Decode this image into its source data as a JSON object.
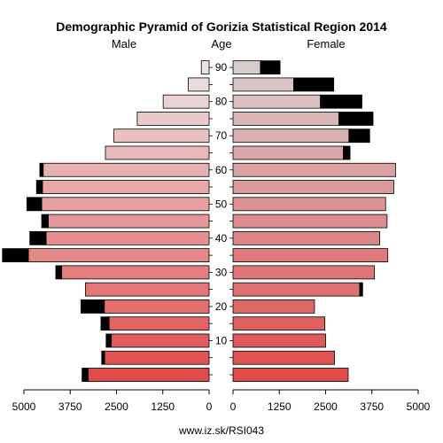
{
  "chart_data": {
    "type": "bar",
    "subtype": "population-pyramid",
    "title": "Demographic Pyramid of Gorizia Statistical Region 2014",
    "left_label": "Male",
    "center_label": "Age",
    "right_label": "Female",
    "footer": "www.iz.sk/RSI043",
    "age_ticks": [
      "10",
      "20",
      "30",
      "40",
      "50",
      "60",
      "70",
      "80",
      "90"
    ],
    "x_ticks_left": [
      "5000",
      "3750",
      "2500",
      "1250",
      "0"
    ],
    "x_ticks_right": [
      "0",
      "1250",
      "2500",
      "3750",
      "5000"
    ],
    "xlim": [
      0,
      5000
    ],
    "legend": "none",
    "grid": false,
    "age_groups": [
      "0-4",
      "5-9",
      "10-14",
      "15-19",
      "20-24",
      "25-29",
      "30-34",
      "35-39",
      "40-44",
      "45-49",
      "50-54",
      "55-59",
      "60-64",
      "65-69",
      "70-74",
      "75-79",
      "80-84",
      "85-89",
      "90+"
    ],
    "series": [
      {
        "name": "Male",
        "values": [
          3270,
          2820,
          2640,
          2700,
          2830,
          3340,
          3980,
          4880,
          4400,
          4340,
          4520,
          4500,
          4480,
          2800,
          2570,
          1940,
          1240,
          560,
          210
        ],
        "excess": [
          0,
          0,
          0,
          0,
          0,
          0,
          0,
          0,
          0,
          0,
          0,
          0,
          0,
          0,
          0,
          0,
          0,
          0,
          0
        ]
      },
      {
        "name": "Female",
        "values": [
          3110,
          2740,
          2500,
          2480,
          2200,
          3420,
          3820,
          4180,
          3960,
          4160,
          4120,
          4340,
          4390,
          2980,
          3130,
          2860,
          2360,
          1640,
          740
        ],
        "excess": [
          0,
          0,
          0,
          0,
          0,
          0,
          0,
          0,
          0,
          0,
          0,
          0,
          0,
          0,
          0,
          0,
          0,
          0,
          0
        ]
      }
    ],
    "surplus_values": {
      "male_excess": [
        160,
        80,
        140,
        220,
        630,
        0,
        160,
        700,
        440,
        180,
        400,
        160,
        90,
        0,
        0,
        0,
        0,
        0,
        0
      ],
      "female_excess": [
        0,
        0,
        0,
        0,
        0,
        80,
        0,
        0,
        0,
        0,
        0,
        0,
        0,
        180,
        560,
        920,
        1120,
        1080,
        530
      ]
    },
    "colors": {
      "male_bottom": "#df4c4c",
      "male_top": "#ede3e3",
      "female_bottom": "#df4c4c",
      "female_top": "#d9cccc",
      "surplus": "#000000",
      "highlight_35_39": "#e07a7a"
    }
  }
}
